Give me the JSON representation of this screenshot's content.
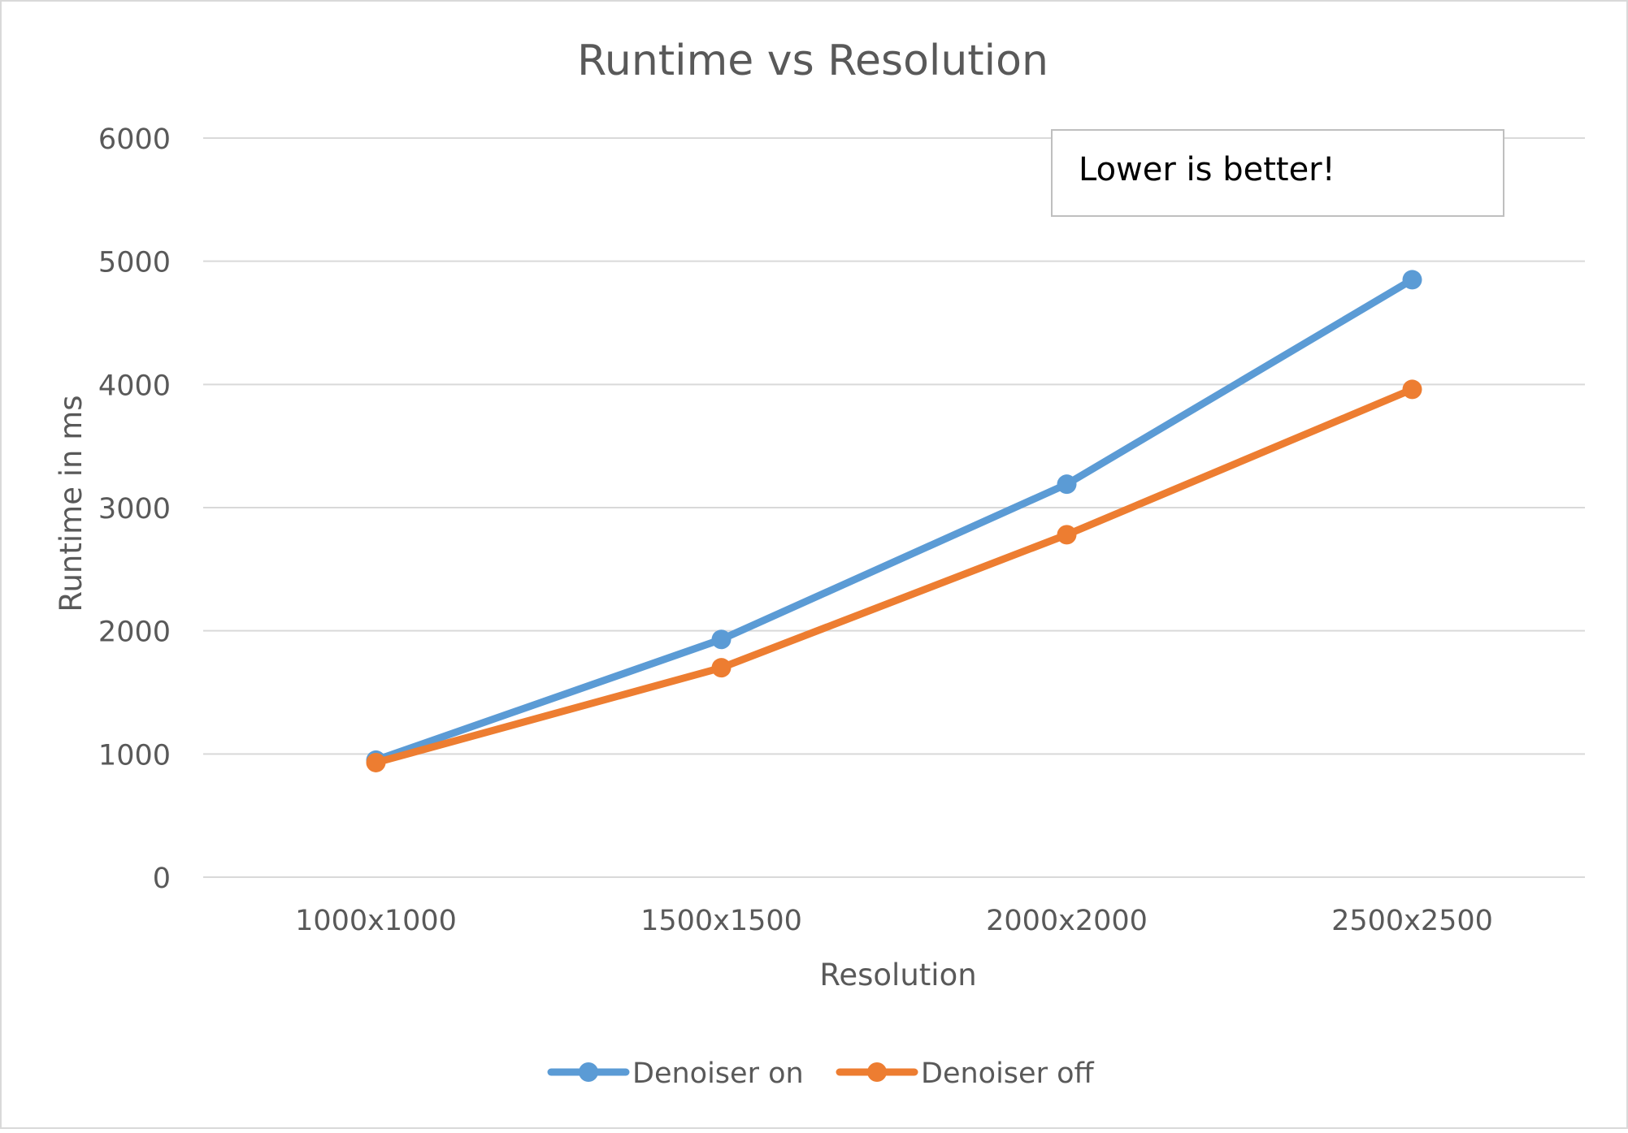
{
  "chart_data": {
    "type": "line",
    "title": "Runtime vs Resolution",
    "xlabel": "Resolution",
    "ylabel": "Runtime in ms",
    "categories": [
      "1000x1000",
      "1500x1500",
      "2000x2000",
      "2500x2500"
    ],
    "series": [
      {
        "name": "Denoiser on",
        "color": "#5b9bd5",
        "values": [
          950,
          1930,
          3190,
          4850
        ]
      },
      {
        "name": "Denoiser off",
        "color": "#ed7d31",
        "values": [
          930,
          1700,
          2780,
          3960
        ]
      }
    ],
    "ylim": [
      0,
      6000
    ],
    "yticks": [
      "0",
      "1000",
      "2000",
      "3000",
      "4000",
      "5000",
      "6000"
    ],
    "grid": true,
    "legend": "bottom",
    "annotation": "Lower is better!"
  },
  "colors": {
    "grid": "#d9d9d9",
    "text": "#595959",
    "frame": "#d9d9d9"
  }
}
